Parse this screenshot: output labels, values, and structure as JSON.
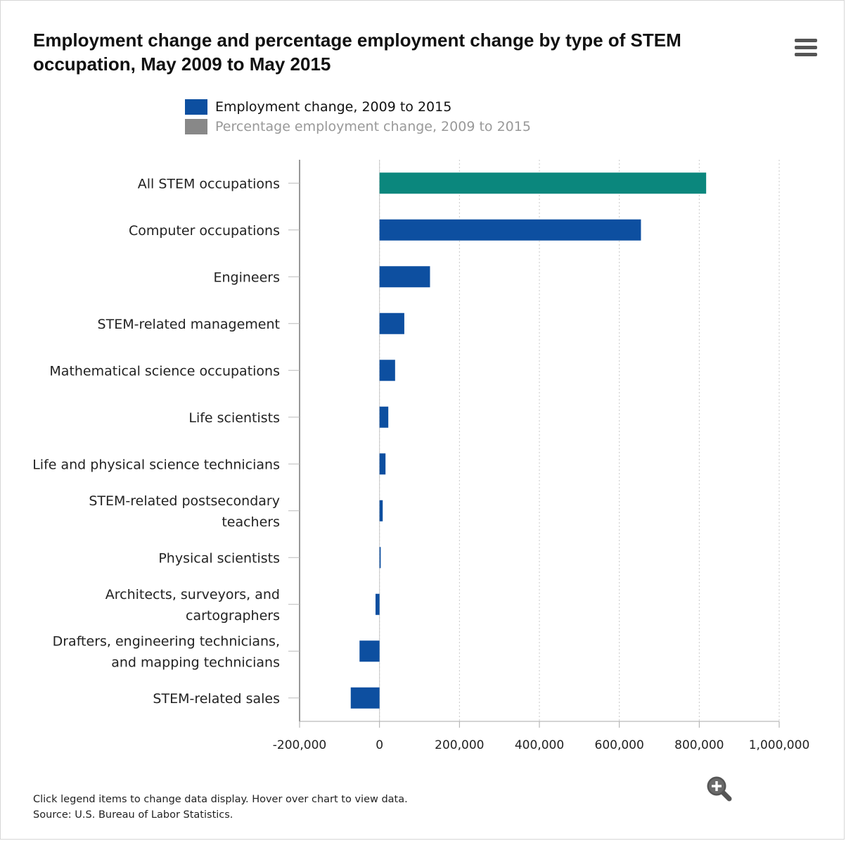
{
  "chart_title": "Employment change and percentage employment change by type of STEM occupation, May 2009 to May 2015",
  "menu_icon": "hamburger-menu-icon",
  "zoom_icon": "zoom-in-magnifier-icon",
  "legend": [
    {
      "label": "Employment change, 2009 to 2015",
      "color": "#0d4fa0",
      "text_color": "#111111",
      "active": true
    },
    {
      "label": "Percentage employment change, 2009 to 2015",
      "color": "#888888",
      "text_color": "#999999",
      "active": false
    }
  ],
  "footer": {
    "note": "Click legend items to change data display. Hover over chart to view data.",
    "source": "Source: U.S. Bureau of Labor Statistics."
  },
  "chart_data": {
    "type": "bar",
    "orientation": "horizontal",
    "title": "Employment change and percentage employment change by type of STEM occupation, May 2009 to May 2015",
    "categories": [
      [
        "All STEM occupations"
      ],
      [
        "Computer occupations"
      ],
      [
        "Engineers"
      ],
      [
        "STEM-related management"
      ],
      [
        "Mathematical science occupations"
      ],
      [
        "Life scientists"
      ],
      [
        "Life and physical science technicians"
      ],
      [
        "STEM-related postsecondary",
        "teachers"
      ],
      [
        "Physical scientists"
      ],
      [
        "Architects, surveyors, and",
        "cartographers"
      ],
      [
        "Drafters, engineering technicians,",
        "and mapping technicians"
      ],
      [
        "STEM-related sales"
      ]
    ],
    "series": [
      {
        "name": "Employment change, 2009 to 2015",
        "color": "#0d4fa0",
        "values": [
          817260,
          654110,
          126330,
          62000,
          39000,
          22000,
          15000,
          8000,
          3000,
          -10000,
          -50000,
          -72000
        ]
      }
    ],
    "highlight": {
      "index": 0,
      "color": "#0b877d"
    },
    "xlim": [
      -200000,
      1000000
    ],
    "xticks": [
      -200000,
      0,
      200000,
      400000,
      600000,
      800000,
      1000000
    ],
    "xtick_labels": [
      "-200,000",
      "0",
      "200,000",
      "400,000",
      "600,000",
      "800,000",
      "1,000,000"
    ],
    "grid": "vertical dotted",
    "legend_position": "top"
  }
}
